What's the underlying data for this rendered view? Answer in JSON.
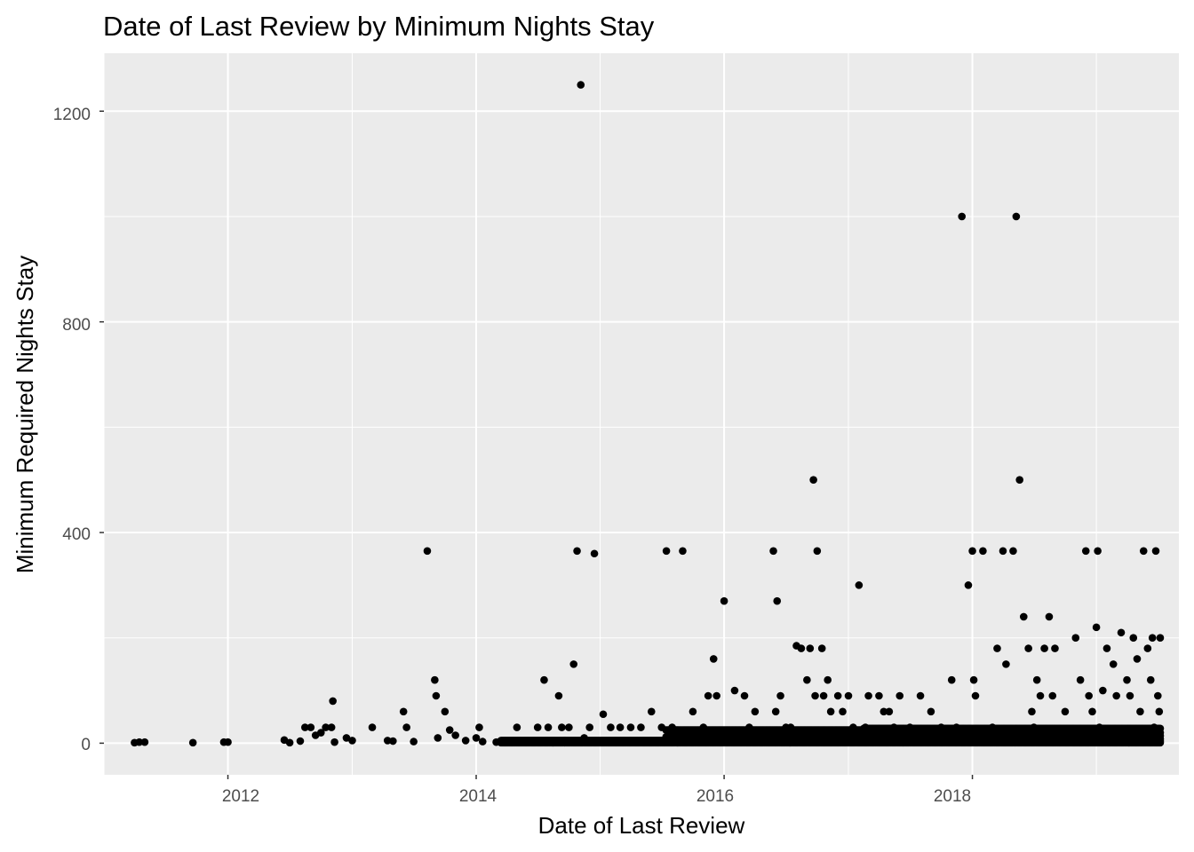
{
  "chart_data": {
    "type": "scatter",
    "title": "Date of Last Review by Minimum Nights Stay",
    "xlabel": "Date of Last Review",
    "ylabel": "Minimum Required Nights Stay",
    "x_tick_labels": [
      "2012",
      "2014",
      "2016",
      "2018"
    ],
    "y_tick_labels": [
      "0",
      "400",
      "800",
      "1200"
    ],
    "xlim": [
      "2011-01-01",
      "2019-09-01"
    ],
    "ylim": [
      -60,
      1310
    ],
    "grid": true,
    "legend": "none",
    "point_color": "#000000",
    "panel_color": "#ebebeb",
    "series": [
      {
        "x": [
          "2011-04-01",
          "2011-04-15",
          "2011-05-01",
          "2011-09-20",
          "2011-12-20",
          "2012-01-01",
          "2012-06-15",
          "2012-07-01",
          "2012-08-01",
          "2012-08-15",
          "2012-09-01",
          "2012-09-15",
          "2012-10-01",
          "2012-10-15",
          "2012-11-01",
          "2012-11-05",
          "2012-11-10",
          "2012-12-15",
          "2013-01-01",
          "2013-03-01",
          "2013-04-15",
          "2013-05-01",
          "2013-06-01",
          "2013-06-10",
          "2013-07-01",
          "2013-08-10",
          "2013-09-01",
          "2013-09-05",
          "2013-09-10",
          "2013-10-01",
          "2013-10-15",
          "2013-11-01",
          "2013-12-01",
          "2014-01-01",
          "2014-01-10",
          "2014-01-20",
          "2014-03-01",
          "2014-04-01",
          "2014-05-01",
          "2014-06-01",
          "2014-07-01",
          "2014-07-20",
          "2014-08-01",
          "2014-08-15",
          "2014-09-01",
          "2014-09-10",
          "2014-10-01",
          "2014-10-10",
          "2014-10-15",
          "2014-10-25",
          "2014-11-05",
          "2014-11-15",
          "2014-11-20",
          "2014-12-01",
          "2014-12-15",
          "2015-01-01",
          "2015-01-05",
          "2015-01-10",
          "2015-02-01",
          "2015-03-01",
          "2015-04-01",
          "2015-05-01",
          "2015-06-01",
          "2015-07-01",
          "2015-07-15",
          "2015-08-01",
          "2015-09-01",
          "2015-09-05",
          "2015-10-01",
          "2015-11-01",
          "2015-11-15",
          "2015-12-01",
          "2015-12-10",
          "2015-12-15",
          "2016-01-01",
          "2016-02-01",
          "2016-03-01",
          "2016-03-15",
          "2016-04-01",
          "2016-05-01",
          "2016-05-25",
          "2016-06-01",
          "2016-06-05",
          "2016-06-15",
          "2016-07-01",
          "2016-07-15",
          "2016-08-01",
          "2016-08-15",
          "2016-09-01",
          "2016-09-10",
          "2016-09-20",
          "2016-09-25",
          "2016-10-01",
          "2016-10-15",
          "2016-10-20",
          "2016-11-01",
          "2016-11-10",
          "2016-12-01",
          "2016-12-15",
          "2017-01-01",
          "2017-01-15",
          "2017-02-01",
          "2017-02-20",
          "2017-03-01",
          "2017-04-01",
          "2017-04-15",
          "2017-05-01",
          "2017-05-15",
          "2017-06-01",
          "2017-07-01",
          "2017-08-01",
          "2017-09-01",
          "2017-10-01",
          "2017-11-01",
          "2017-11-15",
          "2017-12-01",
          "2017-12-20",
          "2018-01-01",
          "2018-01-05",
          "2018-01-10",
          "2018-02-01",
          "2018-03-01",
          "2018-03-15",
          "2018-04-01",
          "2018-04-10",
          "2018-05-01",
          "2018-05-10",
          "2018-05-20",
          "2018-06-01",
          "2018-06-15",
          "2018-06-25",
          "2018-07-01",
          "2018-07-10",
          "2018-07-20",
          "2018-08-01",
          "2018-08-15",
          "2018-08-25",
          "2018-09-01",
          "2018-10-01",
          "2018-11-01",
          "2018-11-15",
          "2018-12-01",
          "2018-12-10",
          "2018-12-20",
          "2019-01-01",
          "2019-01-05",
          "2019-01-10",
          "2019-01-20",
          "2019-02-01",
          "2019-02-20",
          "2019-03-01",
          "2019-03-15",
          "2019-04-01",
          "2019-04-10",
          "2019-04-20",
          "2019-05-01",
          "2019-05-10",
          "2019-05-20",
          "2019-06-01",
          "2019-06-10",
          "2019-06-15",
          "2019-06-20",
          "2019-06-25",
          "2019-07-01",
          "2019-07-05",
          "2019-07-08"
        ],
        "y": [
          1,
          2,
          2,
          1,
          2,
          2,
          6,
          1,
          4,
          30,
          30,
          15,
          20,
          30,
          30,
          80,
          2,
          10,
          5,
          30,
          5,
          4,
          60,
          30,
          3,
          365,
          120,
          90,
          10,
          60,
          25,
          15,
          5,
          10,
          30,
          3,
          2,
          3,
          30,
          3,
          30,
          120,
          30,
          1,
          90,
          30,
          30,
          2,
          150,
          365,
          1250,
          10,
          5,
          30,
          360,
          3,
          2,
          55,
          30,
          30,
          30,
          30,
          60,
          30,
          365,
          30,
          365,
          20,
          60,
          30,
          90,
          160,
          90,
          10,
          270,
          100,
          90,
          30,
          60,
          10,
          365,
          60,
          270,
          90,
          30,
          30,
          185,
          180,
          120,
          180,
          500,
          90,
          365,
          180,
          90,
          120,
          60,
          90,
          60,
          90,
          30,
          300,
          30,
          90,
          90,
          60,
          60,
          30,
          90,
          30,
          90,
          60,
          30,
          120,
          30,
          1000,
          300,
          365,
          120,
          90,
          365,
          30,
          180,
          365,
          150,
          365,
          1000,
          500,
          240,
          180,
          60,
          30,
          120,
          90,
          180,
          240,
          90,
          180,
          60,
          200,
          120,
          365,
          90,
          60,
          220,
          365,
          30,
          100,
          180,
          150,
          90,
          210,
          120,
          90,
          200,
          160,
          60,
          365,
          180,
          120,
          200,
          30,
          365,
          90,
          60,
          200
        ]
      }
    ]
  }
}
